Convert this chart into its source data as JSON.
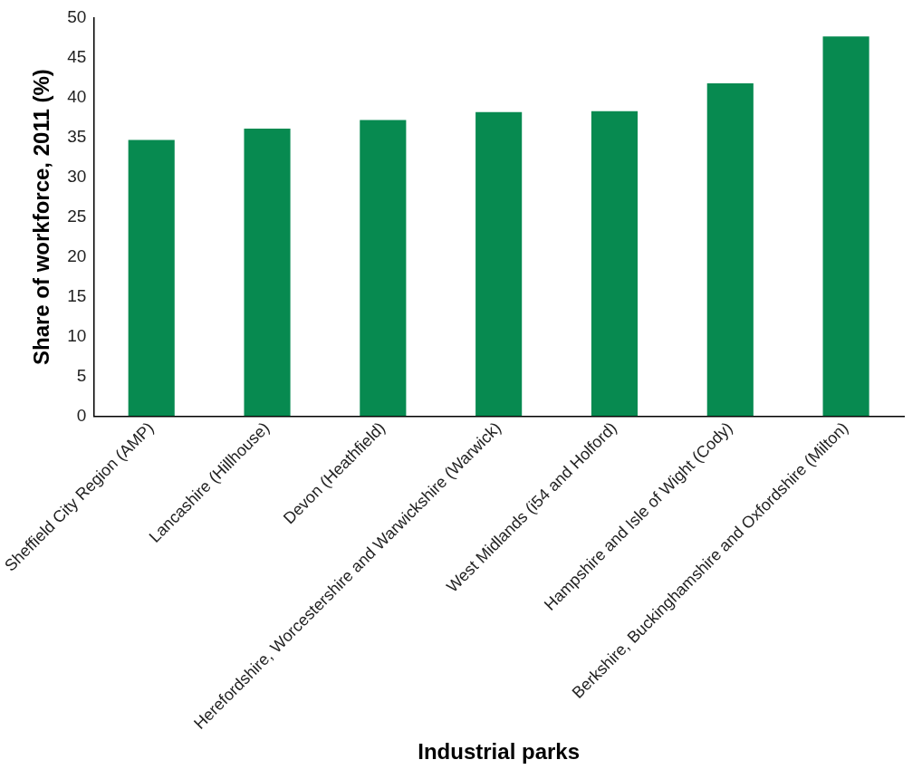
{
  "chart_data": {
    "type": "bar",
    "xlabel": "Industrial parks",
    "ylabel": "Share of workforce, 2011 (%)",
    "categories": [
      "Sheffield City Region (AMP)",
      "Lancashire (Hillhouse)",
      "Devon (Heathfield)",
      "Herefordshire, Worcestershire and Warwickshire (Warwick)",
      "West Midlands (i54 and Holford)",
      "Hampshire and Isle of Wight (Cody)",
      "Berkshire, Buckinghamshire and Oxfordshire (Milton)"
    ],
    "values": [
      34.7,
      36.1,
      37.2,
      38.2,
      38.3,
      41.8,
      47.7
    ],
    "color": "#078a50",
    "ylim": [
      0,
      50
    ],
    "yticks": [
      0,
      5,
      10,
      15,
      20,
      25,
      30,
      35,
      40,
      45,
      50
    ],
    "grid": false,
    "legend": false
  }
}
